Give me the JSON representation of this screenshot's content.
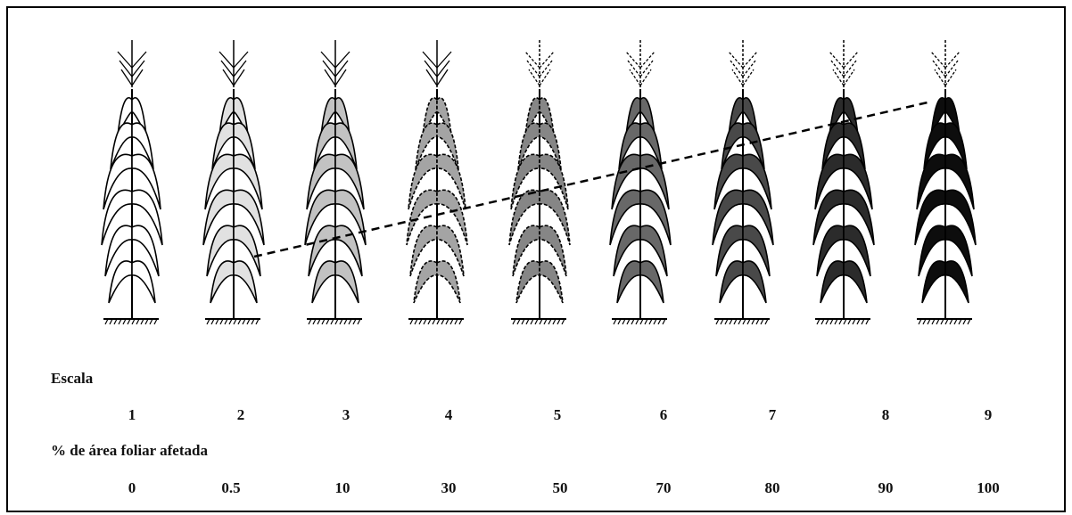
{
  "scale": {
    "label": "Escala",
    "levels": [
      1,
      2,
      3,
      4,
      5,
      6,
      7,
      8,
      9
    ]
  },
  "area": {
    "label": "% de área foliar afetada",
    "values": [
      0,
      0.5,
      10,
      30,
      50,
      70,
      80,
      90,
      100
    ]
  }
}
